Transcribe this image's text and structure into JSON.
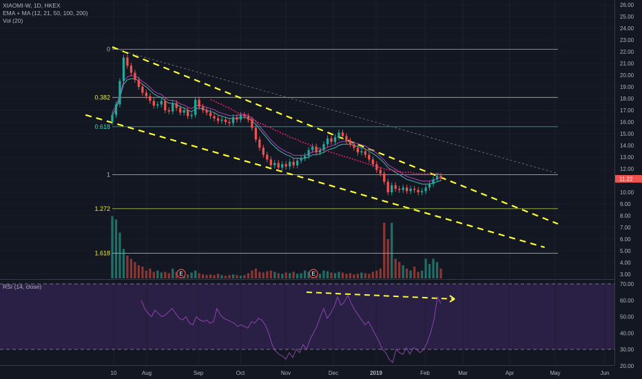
{
  "legend": {
    "symbol": "XIAOMI-W, 1D, HKEX",
    "indicators": "EMA + MA (12, 21, 50, 100, 200)",
    "volume": "Vol (20)",
    "rsi": "RSI (14, close)"
  },
  "last_price": "11.22",
  "colors": {
    "background": "#131722",
    "up": "#26a69a",
    "down": "#ef5350",
    "rsi": "#8e44ad",
    "rsi_band": "#2a1f45",
    "trendline": "#ffff33",
    "fib": "#a6c34a"
  },
  "chart_data": {
    "type": "candlestick",
    "price_axis": {
      "ticks": [
        "26.00",
        "25.00",
        "24.00",
        "23.00",
        "22.00",
        "21.00",
        "20.00",
        "19.00",
        "18.00",
        "17.00",
        "16.00",
        "15.00",
        "14.00",
        "13.00",
        "12.00",
        "11.00",
        "10.00",
        "9.00",
        "8.00",
        "7.00",
        "6.00",
        "5.00",
        "4.00",
        "3.00"
      ],
      "range": [
        2.7,
        26.4
      ]
    },
    "rsi_axis": {
      "ticks": [
        "70.00",
        "60.00",
        "50.00",
        "40.00",
        "30.00",
        "20.00"
      ],
      "range": [
        18,
        71
      ]
    },
    "time_axis": [
      "10",
      "Aug",
      "Sep",
      "Oct",
      "Nov",
      "Dec",
      "2019",
      "Feb",
      "Mar",
      "Apr",
      "May",
      "Jun"
    ],
    "fib_levels": [
      {
        "label": "0",
        "price": 22.2
      },
      {
        "label": "0.382",
        "price": 18.1
      },
      {
        "label": "0.618",
        "price": 15.6
      },
      {
        "label": "1",
        "price": 11.5
      },
      {
        "label": "1.272",
        "price": 8.6
      },
      {
        "label": "1.618",
        "price": 4.8
      }
    ],
    "earnings_markers": [
      "E",
      "E"
    ],
    "close_series": [
      16.6,
      17.5,
      19.5,
      21.5,
      20.8,
      20.2,
      19.6,
      19.0,
      18.5,
      18.2,
      17.8,
      17.4,
      17.5,
      17.8,
      17.0,
      16.9,
      17.6,
      17.2,
      16.8,
      17.0,
      16.5,
      16.6,
      17.9,
      17.3,
      17.0,
      16.8,
      16.5,
      16.3,
      16.1,
      16.2,
      16.0,
      15.9,
      16.4,
      16.2,
      16.6,
      16.5,
      16.2,
      15.5,
      14.5,
      13.8,
      13.2,
      12.8,
      12.3,
      12.5,
      12.1,
      12.4,
      12.2,
      12.6,
      12.3,
      12.7,
      12.9,
      13.1,
      13.6,
      13.9,
      13.4,
      13.6,
      14.1,
      14.6,
      14.3,
      14.7,
      15.1,
      14.8,
      14.4,
      14.1,
      13.8,
      13.4,
      13.5,
      13.2,
      12.8,
      12.4,
      11.9,
      11.6,
      10.9,
      10.0,
      10.6,
      10.3,
      10.2,
      10.4,
      10.1,
      10.3,
      10.2,
      10.0,
      10.1,
      10.4,
      10.7,
      11.1,
      11.4,
      11.2
    ],
    "ema_series": [
      16.6,
      17.1,
      18.1,
      19.2,
      19.6,
      19.7,
      19.7,
      19.5,
      19.2,
      19.0,
      18.7,
      18.4,
      18.2,
      18.1,
      17.8,
      17.6,
      17.6,
      17.5,
      17.3,
      17.2,
      17.0,
      16.9,
      17.1,
      17.2,
      17.1,
      17.0,
      16.9,
      16.8,
      16.6,
      16.5,
      16.4,
      16.3,
      16.3,
      16.3,
      16.4,
      16.4,
      16.3,
      16.1,
      15.8,
      15.4,
      15.0,
      14.6,
      14.2,
      13.9,
      13.6,
      13.4,
      13.2,
      13.1,
      12.9,
      12.9,
      12.9,
      12.9,
      13.0,
      13.2,
      13.2,
      13.3,
      13.4,
      13.6,
      13.7,
      13.8,
      14.0,
      14.1,
      14.1,
      14.1,
      14.0,
      13.9,
      13.8,
      13.7,
      13.5,
      13.3,
      13.1,
      12.8,
      12.5,
      12.1,
      11.9,
      11.7,
      11.5,
      11.3,
      11.1,
      11.0,
      10.9,
      10.8,
      10.7,
      10.7,
      10.7,
      10.8,
      10.9,
      11.0
    ],
    "ma200_series": [
      null,
      null,
      null,
      null,
      null,
      null,
      null,
      null,
      null,
      null,
      null,
      null,
      null,
      null,
      null,
      null,
      null,
      null,
      null,
      null,
      null,
      null,
      null,
      null,
      null,
      null,
      17.9,
      17.8,
      17.6,
      17.5,
      17.3,
      17.2,
      17.0,
      16.8,
      16.7,
      16.5,
      16.4,
      16.2,
      16.1,
      15.9,
      15.8,
      15.6,
      15.5,
      15.3,
      15.2,
      15.0,
      14.9,
      14.7,
      14.6,
      14.5,
      14.3,
      14.2,
      14.1,
      13.9,
      13.8,
      13.7,
      13.6,
      13.5,
      13.4,
      13.3,
      13.2,
      13.1,
      13.0,
      12.9,
      12.8,
      12.7,
      12.6,
      12.5,
      12.4,
      12.3,
      12.2,
      12.1,
      12.0,
      11.9,
      11.9,
      11.8,
      11.8,
      11.7,
      11.7,
      11.7,
      11.6,
      11.6,
      11.6,
      11.6,
      11.6,
      11.6,
      11.6,
      11.6
    ],
    "volume_series": [
      0.95,
      0.9,
      0.7,
      0.45,
      0.35,
      0.3,
      0.25,
      0.2,
      0.18,
      0.12,
      0.15,
      0.1,
      0.12,
      0.09,
      0.1,
      0.08,
      0.15,
      0.1,
      0.08,
      0.07,
      0.06,
      0.09,
      0.12,
      0.08,
      0.06,
      0.05,
      0.06,
      0.05,
      0.07,
      0.05,
      0.04,
      0.05,
      0.06,
      0.05,
      0.04,
      0.05,
      0.08,
      0.12,
      0.15,
      0.1,
      0.09,
      0.11,
      0.12,
      0.1,
      0.08,
      0.07,
      0.09,
      0.08,
      0.1,
      0.07,
      0.08,
      0.12,
      0.1,
      0.06,
      0.08,
      0.07,
      0.12,
      0.11,
      0.09,
      0.08,
      0.1,
      0.09,
      0.07,
      0.08,
      0.06,
      0.07,
      0.09,
      0.08,
      0.07,
      0.1,
      0.12,
      0.15,
      0.85,
      0.6,
      0.85,
      0.3,
      0.25,
      0.2,
      0.15,
      0.12,
      0.18,
      0.1,
      0.12,
      0.3,
      0.22,
      0.3,
      0.25,
      0.15
    ],
    "rsi_series": [
      60,
      55,
      52,
      50,
      54,
      52,
      50,
      51,
      53,
      55,
      52,
      49,
      48,
      50,
      46,
      45,
      50,
      48,
      47,
      48,
      46,
      47,
      55,
      51,
      49,
      48,
      47,
      46,
      44,
      45,
      44,
      43,
      47,
      46,
      49,
      48,
      45,
      40,
      33,
      29,
      27,
      26,
      24,
      28,
      25,
      30,
      28,
      33,
      30,
      36,
      40,
      44,
      50,
      55,
      49,
      52,
      56,
      62,
      57,
      59,
      63,
      58,
      54,
      51,
      48,
      45,
      47,
      43,
      39,
      35,
      30,
      28,
      24,
      22,
      30,
      28,
      27,
      31,
      27,
      31,
      30,
      28,
      30,
      34,
      40,
      48,
      62,
      58
    ],
    "trendlines": [
      {
        "from": [
          0.0,
          22.4
        ],
        "to": [
          1.0,
          7.3
        ]
      },
      {
        "from": [
          -0.06,
          16.6
        ],
        "to": [
          0.97,
          5.3
        ]
      },
      {
        "from": [
          0.0,
          22.3
        ],
        "to": [
          1.0,
          11.6
        ]
      }
    ]
  }
}
